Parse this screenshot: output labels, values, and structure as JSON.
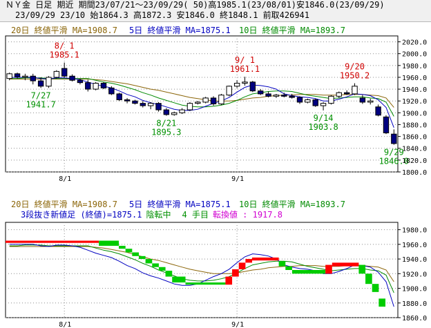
{
  "header": {
    "line1": "ＮＹ金 日足 期近 期間23/07/21～23/09/29( 50)高1985.1(23/08/01)安1846.0(23/09/29)",
    "line2": "23/09/29 23/10 始1864.3 高1872.3 安1846.0 終1848.1 前取426941"
  },
  "colors": {
    "ma20": "#8b6508",
    "ma5": "#0000c0",
    "ma10": "#008a00",
    "up_candle": "#ffffff",
    "down_candle": "#000080",
    "kagi_up": "#ff0000",
    "kagi_down": "#00cc00",
    "grid": "#8c8c8c",
    "annotation_red": "#d00000",
    "annotation_green": "#009000",
    "magenta": "#d000d0"
  },
  "chart_data": [
    {
      "type": "candlestick",
      "legend": {
        "ma20": "20日 終値平滑 MA=1908.7",
        "ma5": "5日 終値平滑 MA=1875.1",
        "ma10": "10日 終値平滑 MA=1893.7"
      },
      "ylim": [
        1800,
        2030
      ],
      "yticks": [
        "2020.0",
        "2000.0",
        "1980.0",
        "1960.0",
        "1940.0",
        "1920.0",
        "1900.0",
        "1880.0",
        "1860.0",
        "1840.0",
        "1820.0",
        "1800.0"
      ],
      "xticks": [
        {
          "label": "8/1",
          "index": 7
        },
        {
          "label": "9/1",
          "index": 29
        }
      ],
      "candles": [
        {
          "o": 1958,
          "h": 1968,
          "l": 1955,
          "c": 1966
        },
        {
          "o": 1966,
          "h": 1968,
          "l": 1958,
          "c": 1961
        },
        {
          "o": 1961,
          "h": 1966,
          "l": 1955,
          "c": 1962
        },
        {
          "o": 1962,
          "h": 1966,
          "l": 1948,
          "c": 1954
        },
        {
          "o": 1954,
          "h": 1960,
          "l": 1942,
          "c": 1945
        },
        {
          "o": 1945,
          "h": 1962,
          "l": 1942,
          "c": 1960
        },
        {
          "o": 1960,
          "h": 1972,
          "l": 1958,
          "c": 1970
        },
        {
          "o": 1975,
          "h": 1985,
          "l": 1960,
          "c": 1962
        },
        {
          "o": 1962,
          "h": 1965,
          "l": 1953,
          "c": 1955
        },
        {
          "o": 1955,
          "h": 1958,
          "l": 1948,
          "c": 1951
        },
        {
          "o": 1951,
          "h": 1956,
          "l": 1936,
          "c": 1940
        },
        {
          "o": 1940,
          "h": 1952,
          "l": 1938,
          "c": 1950
        },
        {
          "o": 1950,
          "h": 1952,
          "l": 1940,
          "c": 1942
        },
        {
          "o": 1942,
          "h": 1945,
          "l": 1930,
          "c": 1932
        },
        {
          "o": 1932,
          "h": 1934,
          "l": 1920,
          "c": 1922
        },
        {
          "o": 1922,
          "h": 1925,
          "l": 1916,
          "c": 1920
        },
        {
          "o": 1920,
          "h": 1922,
          "l": 1914,
          "c": 1916
        },
        {
          "o": 1916,
          "h": 1920,
          "l": 1909,
          "c": 1912
        },
        {
          "o": 1912,
          "h": 1918,
          "l": 1906,
          "c": 1916
        },
        {
          "o": 1916,
          "h": 1918,
          "l": 1902,
          "c": 1905
        },
        {
          "o": 1905,
          "h": 1908,
          "l": 1895,
          "c": 1897
        },
        {
          "o": 1897,
          "h": 1902,
          "l": 1895,
          "c": 1900
        },
        {
          "o": 1900,
          "h": 1908,
          "l": 1898,
          "c": 1905
        },
        {
          "o": 1905,
          "h": 1918,
          "l": 1903,
          "c": 1916
        },
        {
          "o": 1916,
          "h": 1920,
          "l": 1914,
          "c": 1918
        },
        {
          "o": 1918,
          "h": 1927,
          "l": 1916,
          "c": 1925
        },
        {
          "o": 1925,
          "h": 1928,
          "l": 1912,
          "c": 1915
        },
        {
          "o": 1915,
          "h": 1932,
          "l": 1913,
          "c": 1930
        },
        {
          "o": 1930,
          "h": 1946,
          "l": 1928,
          "c": 1945
        },
        {
          "o": 1945,
          "h": 1955,
          "l": 1942,
          "c": 1950
        },
        {
          "o": 1950,
          "h": 1961,
          "l": 1946,
          "c": 1952
        },
        {
          "o": 1952,
          "h": 1954,
          "l": 1935,
          "c": 1937
        },
        {
          "o": 1937,
          "h": 1940,
          "l": 1930,
          "c": 1932
        },
        {
          "o": 1932,
          "h": 1936,
          "l": 1926,
          "c": 1928
        },
        {
          "o": 1928,
          "h": 1932,
          "l": 1925,
          "c": 1930
        },
        {
          "o": 1930,
          "h": 1934,
          "l": 1926,
          "c": 1928
        },
        {
          "o": 1928,
          "h": 1932,
          "l": 1924,
          "c": 1926
        },
        {
          "o": 1926,
          "h": 1928,
          "l": 1915,
          "c": 1918
        },
        {
          "o": 1918,
          "h": 1924,
          "l": 1916,
          "c": 1922
        },
        {
          "o": 1922,
          "h": 1924,
          "l": 1910,
          "c": 1912
        },
        {
          "o": 1912,
          "h": 1918,
          "l": 1904,
          "c": 1916
        },
        {
          "o": 1916,
          "h": 1930,
          "l": 1914,
          "c": 1928
        },
        {
          "o": 1928,
          "h": 1936,
          "l": 1925,
          "c": 1934
        },
        {
          "o": 1934,
          "h": 1938,
          "l": 1930,
          "c": 1932
        },
        {
          "o": 1932,
          "h": 1950,
          "l": 1930,
          "c": 1945
        },
        {
          "o": 1925,
          "h": 1930,
          "l": 1915,
          "c": 1918
        },
        {
          "o": 1918,
          "h": 1924,
          "l": 1914,
          "c": 1920
        },
        {
          "o": 1910,
          "h": 1914,
          "l": 1894,
          "c": 1896
        },
        {
          "o": 1893,
          "h": 1896,
          "l": 1864,
          "c": 1866
        },
        {
          "o": 1864,
          "h": 1872,
          "l": 1846,
          "c": 1848
        }
      ],
      "ma5": [
        1960,
        1960,
        1960,
        1960,
        1958,
        1957,
        1959,
        1959,
        1958,
        1956,
        1952,
        1948,
        1945,
        1942,
        1937,
        1931,
        1927,
        1921,
        1917,
        1914,
        1910,
        1906,
        1904,
        1904,
        1906,
        1911,
        1916,
        1920,
        1926,
        1935,
        1943,
        1947,
        1946,
        1944,
        1940,
        1932,
        1929,
        1927,
        1926,
        1924,
        1920,
        1920,
        1923,
        1927,
        1932,
        1931,
        1929,
        1922,
        1909,
        1875
      ],
      "ma10": [
        1958,
        1958,
        1959,
        1959,
        1959,
        1958,
        1958,
        1958,
        1958,
        1958,
        1958,
        1955,
        1952,
        1950,
        1947,
        1943,
        1939,
        1934,
        1930,
        1925,
        1921,
        1917,
        1913,
        1911,
        1910,
        1910,
        1911,
        1913,
        1916,
        1921,
        1927,
        1932,
        1934,
        1936,
        1937,
        1937,
        1936,
        1933,
        1930,
        1928,
        1926,
        1924,
        1925,
        1926,
        1927,
        1927,
        1925,
        1924,
        1918,
        1894
      ],
      "ma20": [
        1957,
        1957,
        1957,
        1957,
        1957,
        1957,
        1957,
        1957,
        1957,
        1957,
        1957,
        1956,
        1955,
        1953,
        1951,
        1949,
        1946,
        1943,
        1940,
        1938,
        1935,
        1932,
        1929,
        1926,
        1924,
        1922,
        1920,
        1920,
        1920,
        1921,
        1923,
        1925,
        1926,
        1928,
        1929,
        1930,
        1930,
        1931,
        1931,
        1931,
        1930,
        1930,
        1930,
        1931,
        1931,
        1931,
        1930,
        1929,
        1925,
        1909
      ],
      "annotations": [
        {
          "type": "high",
          "date": "8/ 1",
          "value": "1985.1",
          "index": 7
        },
        {
          "type": "low",
          "date": "7/27",
          "value": "1941.7",
          "index": 4
        },
        {
          "type": "low",
          "date": "8/21",
          "value": "1895.3",
          "index": 20
        },
        {
          "type": "high",
          "date": "9/ 1",
          "value": "1961.1",
          "index": 30
        },
        {
          "type": "low",
          "date": "9/14",
          "value": "1903.8",
          "index": 40
        },
        {
          "type": "high",
          "date": "9/20",
          "value": "1950.2",
          "index": 44
        },
        {
          "type": "low",
          "date": "9/29",
          "value": "1846.0",
          "index": 49
        }
      ]
    },
    {
      "type": "kagi",
      "legend": {
        "ma20": "20日 終値平滑 MA=1908.7",
        "ma5": "5日 終値平滑 MA=1875.1",
        "ma10": "10日 終値平滑 MA=1893.7"
      },
      "subtitle": {
        "prefix": "3段抜き新値足 (終値)=1875.1",
        "status": "陰転中",
        "count": "4 手目",
        "reversal": "転換値 : 1917.8"
      },
      "ylim": [
        1860,
        1990
      ],
      "yticks": [
        "1980.0",
        "1960.0",
        "1940.0",
        "1920.0",
        "1900.0",
        "1880.0",
        "1860.0"
      ],
      "xticks": [
        {
          "label": "8/1",
          "index": 7
        },
        {
          "label": "9/1",
          "index": 29
        }
      ],
      "segments": [
        {
          "dir": "up",
          "x0": 0,
          "x1": 14,
          "top": 1965,
          "bottom": 1962
        },
        {
          "dir": "down",
          "x0": 14,
          "x1": 17,
          "top": 1965,
          "bottom": 1958
        },
        {
          "dir": "down",
          "x0": 17,
          "x1": 18,
          "top": 1958,
          "bottom": 1954
        },
        {
          "dir": "down",
          "x0": 18,
          "x1": 19,
          "top": 1954,
          "bottom": 1949
        },
        {
          "dir": "down",
          "x0": 19,
          "x1": 20,
          "top": 1949,
          "bottom": 1944
        },
        {
          "dir": "down",
          "x0": 20,
          "x1": 21,
          "top": 1944,
          "bottom": 1940
        },
        {
          "dir": "down",
          "x0": 21,
          "x1": 22,
          "top": 1940,
          "bottom": 1934
        },
        {
          "dir": "down",
          "x0": 22,
          "x1": 23,
          "top": 1934,
          "bottom": 1929
        },
        {
          "dir": "down",
          "x0": 23,
          "x1": 24,
          "top": 1929,
          "bottom": 1924
        },
        {
          "dir": "down",
          "x0": 24,
          "x1": 25,
          "top": 1924,
          "bottom": 1916
        },
        {
          "dir": "down",
          "x0": 25,
          "x1": 27,
          "top": 1916,
          "bottom": 1908
        },
        {
          "dir": "down",
          "x0": 27,
          "x1": 33,
          "top": 1908,
          "bottom": 1905
        },
        {
          "dir": "up",
          "x0": 33,
          "x1": 34,
          "top": 1916,
          "bottom": 1905
        },
        {
          "dir": "up",
          "x0": 34,
          "x1": 35,
          "top": 1926,
          "bottom": 1916
        },
        {
          "dir": "up",
          "x0": 35,
          "x1": 36,
          "top": 1935,
          "bottom": 1926
        },
        {
          "dir": "up",
          "x0": 36,
          "x1": 37,
          "top": 1940,
          "bottom": 1935
        },
        {
          "dir": "up",
          "x0": 37,
          "x1": 41,
          "top": 1942,
          "bottom": 1938
        },
        {
          "dir": "down",
          "x0": 41,
          "x1": 42,
          "top": 1937,
          "bottom": 1930
        },
        {
          "dir": "down",
          "x0": 42,
          "x1": 43,
          "top": 1930,
          "bottom": 1925
        },
        {
          "dir": "down",
          "x0": 43,
          "x1": 48,
          "top": 1925,
          "bottom": 1920
        },
        {
          "dir": "up",
          "x0": 48,
          "x1": 49,
          "top": 1932,
          "bottom": 1920
        },
        {
          "dir": "up",
          "x0": 49,
          "x1": 53,
          "top": 1935,
          "bottom": 1930
        },
        {
          "dir": "down",
          "x0": 53,
          "x1": 54,
          "top": 1932,
          "bottom": 1920
        },
        {
          "dir": "down",
          "x0": 54,
          "x1": 55,
          "top": 1920,
          "bottom": 1906
        },
        {
          "dir": "down",
          "x0": 55,
          "x1": 56,
          "top": 1906,
          "bottom": 1895
        },
        {
          "dir": "down",
          "x0": 56,
          "x1": 57,
          "top": 1886,
          "bottom": 1875
        }
      ]
    }
  ]
}
